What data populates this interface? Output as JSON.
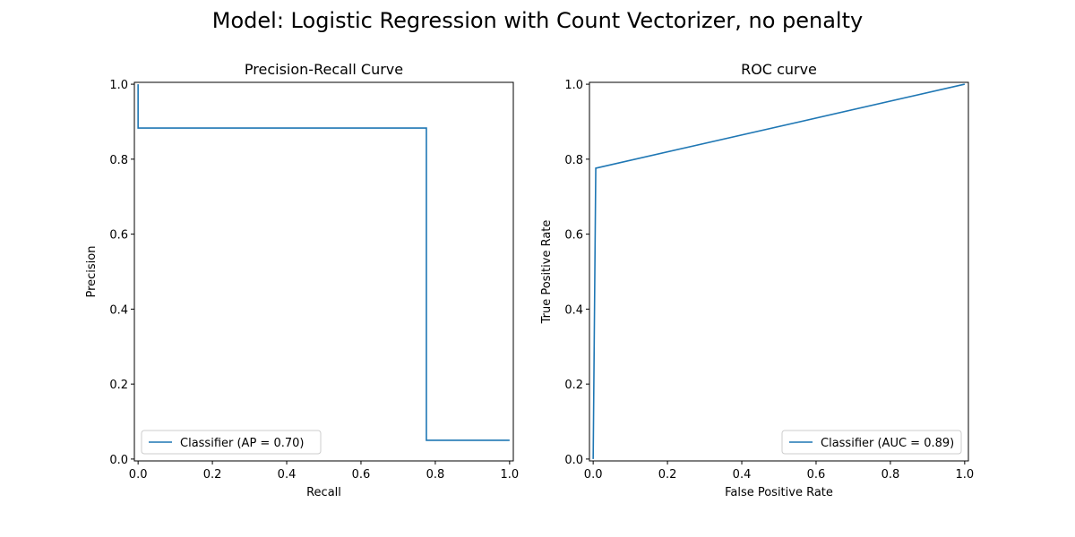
{
  "figure_title": "Model: Logistic Regression with Count Vectorizer, no penalty",
  "chart_data": [
    {
      "type": "line",
      "title": "Precision-Recall Curve",
      "xlabel": "Recall",
      "ylabel": "Precision",
      "xlim": [
        -0.01,
        1.01
      ],
      "ylim": [
        -0.005,
        1.005
      ],
      "xticks": [
        0.0,
        0.2,
        0.4,
        0.6,
        0.8,
        1.0
      ],
      "yticks": [
        0.0,
        0.2,
        0.4,
        0.6,
        0.8,
        1.0
      ],
      "grid": false,
      "legend_position": "lower left",
      "series": [
        {
          "name": "Classifier (AP = 0.70)",
          "color": "#1f77b4",
          "x": [
            0.0,
            0.0,
            0.776,
            0.776,
            1.0
          ],
          "y": [
            1.0,
            0.883,
            0.883,
            0.05,
            0.05
          ]
        }
      ]
    },
    {
      "type": "line",
      "title": "ROC curve",
      "xlabel": "False Positive Rate",
      "ylabel": "True Positive Rate",
      "xlim": [
        -0.01,
        1.01
      ],
      "ylim": [
        -0.005,
        1.005
      ],
      "xticks": [
        0.0,
        0.2,
        0.4,
        0.6,
        0.8,
        1.0
      ],
      "yticks": [
        0.0,
        0.2,
        0.4,
        0.6,
        0.8,
        1.0
      ],
      "grid": false,
      "legend_position": "lower right",
      "series": [
        {
          "name": "Classifier (AUC = 0.89)",
          "color": "#1f77b4",
          "x": [
            0.0,
            0.007,
            1.0
          ],
          "y": [
            0.0,
            0.776,
            1.0
          ]
        }
      ]
    }
  ]
}
